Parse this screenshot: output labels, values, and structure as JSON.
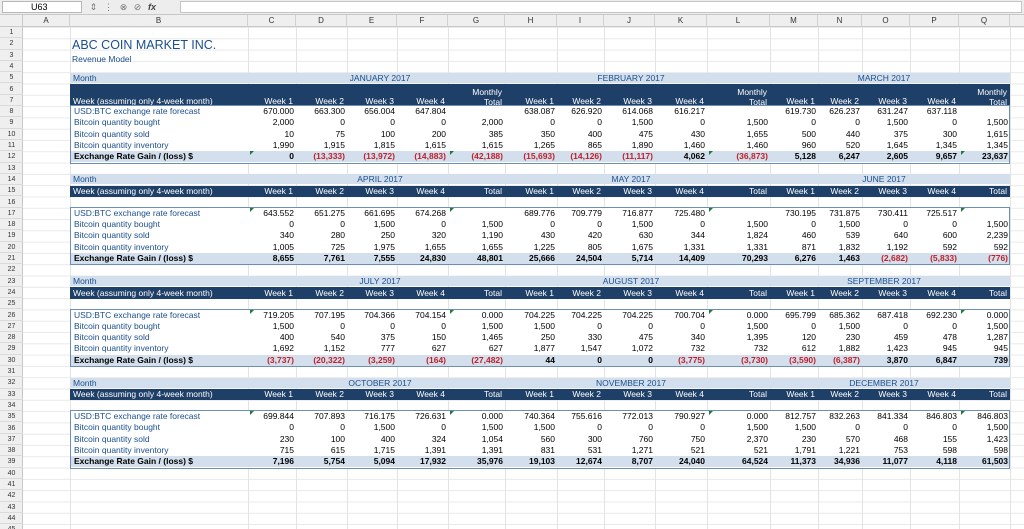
{
  "formula_bar": {
    "cell_ref": "U63",
    "fx_label": "fx",
    "value": ""
  },
  "columns": [
    "A",
    "B",
    "C",
    "D",
    "E",
    "F",
    "G",
    "H",
    "I",
    "J",
    "K",
    "L",
    "M",
    "N",
    "O",
    "P",
    "Q"
  ],
  "rows": [
    "1",
    "2",
    "3",
    "4",
    "5",
    "6",
    "7",
    "8",
    "9",
    "10",
    "11",
    "12",
    "13",
    "14",
    "15",
    "16",
    "17",
    "18",
    "19",
    "20",
    "21",
    "22",
    "23",
    "24",
    "25",
    "26",
    "27",
    "28",
    "29",
    "30",
    "31",
    "32",
    "33",
    "34",
    "35",
    "36",
    "37",
    "38",
    "39",
    "40",
    "41",
    "42",
    "43",
    "44",
    "45",
    "46"
  ],
  "title": "ABC COIN MARKET INC.",
  "subtitle": "Revenue Model",
  "month_caption": "Month",
  "week_caption": "Week (assuming only 4-week month)",
  "row_labels": [
    "USD:BTC exchange rate forecast",
    "Bitcoin quantity bought",
    "Bitcoin quantity sold",
    "Bitcoin quantity inventory",
    "Exchange Rate Gain / (loss) $"
  ],
  "blocks": [
    {
      "months": [
        "JANUARY 2017",
        "FEBRUARY 2017",
        "MARCH 2017"
      ],
      "headers": [
        "Week 1",
        "Week 2",
        "Week 3",
        "Week 4",
        "Total",
        "Week 1",
        "Week 2",
        "Week 3",
        "Week 4",
        "Total",
        "Week 1",
        "Week 2",
        "Week 3",
        "Week 4",
        "Total"
      ],
      "monthly_prefix": "Monthly",
      "data": [
        [
          "670.000",
          "663.300",
          "656.004",
          "647.804",
          "",
          "638.087",
          "626.920",
          "614.068",
          "616.217",
          "",
          "619.730",
          "626.237",
          "631.247",
          "637.118",
          ""
        ],
        [
          "2,000",
          "0",
          "0",
          "0",
          "2,000",
          "0",
          "0",
          "1,500",
          "0",
          "1,500",
          "0",
          "0",
          "1,500",
          "0",
          "1,500"
        ],
        [
          "10",
          "75",
          "100",
          "200",
          "385",
          "350",
          "400",
          "475",
          "430",
          "1,655",
          "500",
          "440",
          "375",
          "300",
          "1,615"
        ],
        [
          "1,990",
          "1,915",
          "1,815",
          "1,615",
          "1,615",
          "1,265",
          "865",
          "1,890",
          "1,460",
          "1,460",
          "960",
          "520",
          "1,645",
          "1,345",
          "1,345"
        ],
        [
          "0",
          "(13,333)",
          "(13,972)",
          "(14,883)",
          "(42,188)",
          "(15,693)",
          "(14,126)",
          "(11,117)",
          "4,062",
          "(36,873)",
          "5,128",
          "6,247",
          "2,605",
          "9,657",
          "23,637"
        ]
      ]
    },
    {
      "months": [
        "APRIL 2017",
        "MAY 2017",
        "JUNE 2017"
      ],
      "headers": [
        "Week 1",
        "Week 2",
        "Week 3",
        "Week 4",
        "Total",
        "Week 1",
        "Week 2",
        "Week 3",
        "Week 4",
        "Total",
        "Week 1",
        "Week 2",
        "Week 3",
        "Week 4",
        "Total"
      ],
      "monthly_prefix": "",
      "data": [
        [
          "643.552",
          "651.275",
          "661.695",
          "674.268",
          "",
          "689.776",
          "709.779",
          "716.877",
          "725.480",
          "",
          "730.195",
          "731.875",
          "730.411",
          "725.517",
          ""
        ],
        [
          "0",
          "0",
          "1,500",
          "0",
          "1,500",
          "0",
          "0",
          "1,500",
          "0",
          "1,500",
          "0",
          "1,500",
          "0",
          "0",
          "1,500"
        ],
        [
          "340",
          "280",
          "250",
          "320",
          "1,190",
          "430",
          "420",
          "630",
          "344",
          "1,824",
          "460",
          "539",
          "640",
          "600",
          "2,239"
        ],
        [
          "1,005",
          "725",
          "1,975",
          "1,655",
          "1,655",
          "1,225",
          "805",
          "1,675",
          "1,331",
          "1,331",
          "871",
          "1,832",
          "1,192",
          "592",
          "592"
        ],
        [
          "8,655",
          "7,761",
          "7,555",
          "24,830",
          "48,801",
          "25,666",
          "24,504",
          "5,714",
          "14,409",
          "70,293",
          "6,276",
          "1,463",
          "(2,682)",
          "(5,833)",
          "(776)"
        ]
      ]
    },
    {
      "months": [
        "JULY 2017",
        "AUGUST 2017",
        "SEPTEMBER 2017"
      ],
      "headers": [
        "Week 1",
        "Week 2",
        "Week 3",
        "Week 4",
        "Total",
        "Week 1",
        "Week 2",
        "Week 3",
        "Week 4",
        "Total",
        "Week 1",
        "Week 2",
        "Week 3",
        "Week 4",
        "Total"
      ],
      "monthly_prefix": "",
      "data": [
        [
          "719.205",
          "707.195",
          "704.366",
          "704.154",
          "0.000",
          "704.225",
          "704.225",
          "704.225",
          "700.704",
          "0.000",
          "695.799",
          "685.362",
          "687.418",
          "692.230",
          "0.000"
        ],
        [
          "1,500",
          "0",
          "0",
          "0",
          "1,500",
          "1,500",
          "0",
          "0",
          "0",
          "1,500",
          "0",
          "1,500",
          "0",
          "0",
          "1,500"
        ],
        [
          "400",
          "540",
          "375",
          "150",
          "1,465",
          "250",
          "330",
          "475",
          "340",
          "1,395",
          "120",
          "230",
          "459",
          "478",
          "1,287"
        ],
        [
          "1,692",
          "1,152",
          "777",
          "627",
          "627",
          "1,877",
          "1,547",
          "1,072",
          "732",
          "732",
          "612",
          "1,882",
          "1,423",
          "945",
          "945"
        ],
        [
          "(3,737)",
          "(20,322)",
          "(3,259)",
          "(164)",
          "(27,482)",
          "44",
          "0",
          "0",
          "(3,775)",
          "(3,730)",
          "(3,590)",
          "(6,387)",
          "3,870",
          "6,847",
          "739"
        ]
      ]
    },
    {
      "months": [
        "OCTOBER 2017",
        "NOVEMBER 2017",
        "DECEMBER 2017"
      ],
      "headers": [
        "Week 1",
        "Week 2",
        "Week 3",
        "Week 4",
        "Total",
        "Week 1",
        "Week 2",
        "Week 3",
        "Week 4",
        "Total",
        "Week 1",
        "Week 2",
        "Week 3",
        "Week 4",
        "Total"
      ],
      "monthly_prefix": "",
      "data": [
        [
          "699.844",
          "707.893",
          "716.175",
          "726.631",
          "0.000",
          "740.364",
          "755.616",
          "772.013",
          "790.927",
          "0.000",
          "812.757",
          "832.263",
          "841.334",
          "846.803",
          "846.803"
        ],
        [
          "0",
          "0",
          "1,500",
          "0",
          "1,500",
          "1,500",
          "0",
          "0",
          "0",
          "1,500",
          "1,500",
          "0",
          "0",
          "0",
          "1,500"
        ],
        [
          "230",
          "100",
          "400",
          "324",
          "1,054",
          "560",
          "300",
          "760",
          "750",
          "2,370",
          "230",
          "570",
          "468",
          "155",
          "1,423"
        ],
        [
          "715",
          "615",
          "1,715",
          "1,391",
          "1,391",
          "831",
          "531",
          "1,271",
          "521",
          "521",
          "1,791",
          "1,221",
          "753",
          "598",
          "598"
        ],
        [
          "7,196",
          "5,754",
          "5,094",
          "17,932",
          "35,976",
          "19,103",
          "12,674",
          "8,707",
          "24,040",
          "64,524",
          "11,373",
          "34,936",
          "11,077",
          "4,118",
          "61,503"
        ]
      ]
    }
  ]
}
